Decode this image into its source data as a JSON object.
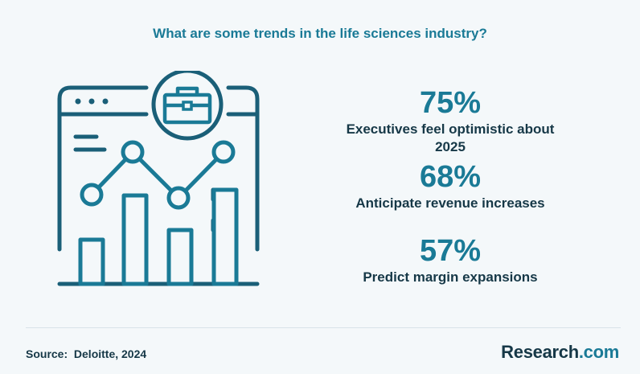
{
  "title": "What are some trends in the life sciences industry?",
  "illustration": {
    "icons": [
      "browser-window-icon",
      "briefcase-icon",
      "bar-chart-icon",
      "trend-line-icon"
    ]
  },
  "stats": [
    {
      "value": "75%",
      "label": "Executives feel optimistic about 2025"
    },
    {
      "value": "68%",
      "label": "Anticipate revenue increases"
    },
    {
      "value": "57%",
      "label": "Predict margin expansions"
    }
  ],
  "footer": {
    "source_label": "Source:",
    "source_value": "Deloitte, 2024",
    "logo_main": "Research",
    "logo_tld": ".com"
  },
  "colors": {
    "background": "#f4f8fa",
    "accent": "#1a7a96",
    "dark": "#163847"
  }
}
